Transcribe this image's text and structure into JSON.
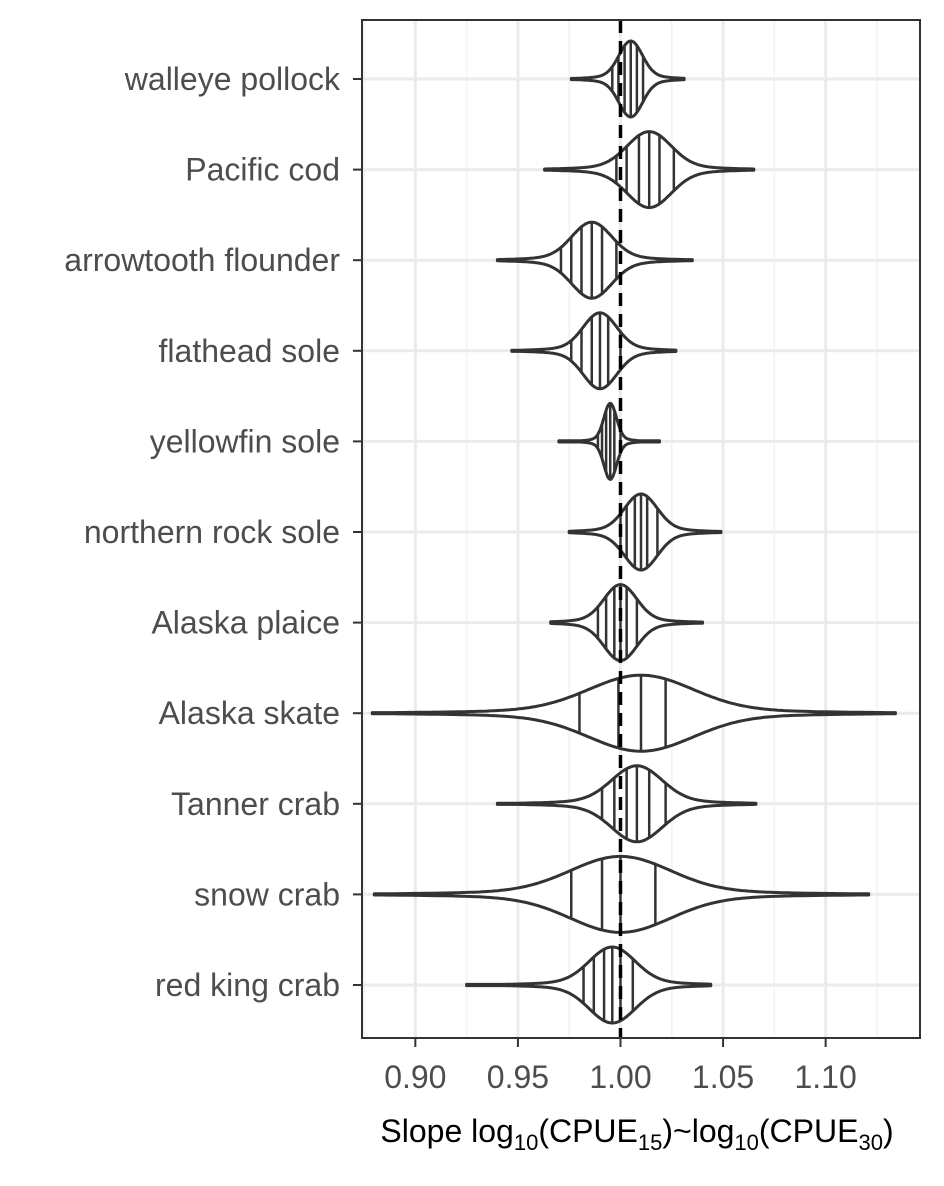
{
  "chart_data": {
    "type": "violin",
    "orientation": "horizontal",
    "categories": [
      "walleye pollock",
      "Pacific cod",
      "arrowtooth flounder",
      "flathead sole",
      "yellowfin sole",
      "northern rock sole",
      "Alaska plaice",
      "Alaska skate",
      "Tanner crab",
      "snow crab",
      "red king crab"
    ],
    "series": [
      {
        "min": 0.976,
        "max": 1.031,
        "sd": 0.0056,
        "quantiles": [
          0.996,
          0.999,
          1.002,
          1.005,
          1.008,
          1.011
        ]
      },
      {
        "min": 0.963,
        "max": 1.065,
        "sd": 0.0105,
        "quantiles": [
          0.998,
          1.003,
          1.009,
          1.014,
          1.019,
          1.026
        ]
      },
      {
        "min": 0.94,
        "max": 1.035,
        "sd": 0.0095,
        "quantiles": [
          0.971,
          0.976,
          0.981,
          0.986,
          0.991,
          0.998
        ]
      },
      {
        "min": 0.947,
        "max": 1.027,
        "sd": 0.008,
        "quantiles": [
          0.976,
          0.981,
          0.986,
          0.99,
          0.994,
          1.0
        ]
      },
      {
        "min": 0.97,
        "max": 1.019,
        "sd": 0.003,
        "quantiles": [
          0.989,
          0.991,
          0.993,
          0.995,
          0.997,
          1.0
        ]
      },
      {
        "min": 0.975,
        "max": 1.049,
        "sd": 0.0078,
        "quantiles": [
          1.0,
          1.003,
          1.007,
          1.01,
          1.013,
          1.018
        ]
      },
      {
        "min": 0.966,
        "max": 1.04,
        "sd": 0.0078,
        "quantiles": [
          0.989,
          0.993,
          0.997,
          1.0,
          1.003,
          1.008
        ]
      },
      {
        "min": 0.879,
        "max": 1.134,
        "sd": 0.025,
        "quantiles": [
          0.98,
          0.999,
          1.01,
          1.022
        ]
      },
      {
        "min": 0.94,
        "max": 1.066,
        "sd": 0.012,
        "quantiles": [
          0.991,
          0.997,
          1.003,
          1.008,
          1.014,
          1.022
        ]
      },
      {
        "min": 0.88,
        "max": 1.121,
        "sd": 0.024,
        "quantiles": [
          0.976,
          0.991,
          1.0,
          1.017
        ]
      },
      {
        "min": 0.925,
        "max": 1.044,
        "sd": 0.011,
        "quantiles": [
          0.982,
          0.987,
          0.992,
          0.996,
          1.0,
          1.006
        ]
      }
    ],
    "x_ticks": [
      0.9,
      0.95,
      1.0,
      1.05,
      1.1
    ],
    "x_tick_labels": [
      "0.90",
      "0.95",
      "1.00",
      "1.05",
      "1.10"
    ],
    "xlim": [
      0.874,
      1.146
    ],
    "reference_line": {
      "x": 1.0,
      "style": "dashed"
    },
    "xlabel": {
      "prefix": "Slope log",
      "sub1": "10",
      "mid1": "(CPUE",
      "sub2": "15",
      "mid2": ")~log",
      "sub3": "10",
      "mid3": "(CPUE",
      "sub4": "30",
      "suffix": ")"
    },
    "ylabel": "",
    "grid": true,
    "legend": "none",
    "colors": {
      "outline": "#333333",
      "grid_major": "#ebebeb",
      "grid_minor": "#f2f2f2",
      "panel_border": "#333333",
      "reference": "#000000"
    }
  }
}
